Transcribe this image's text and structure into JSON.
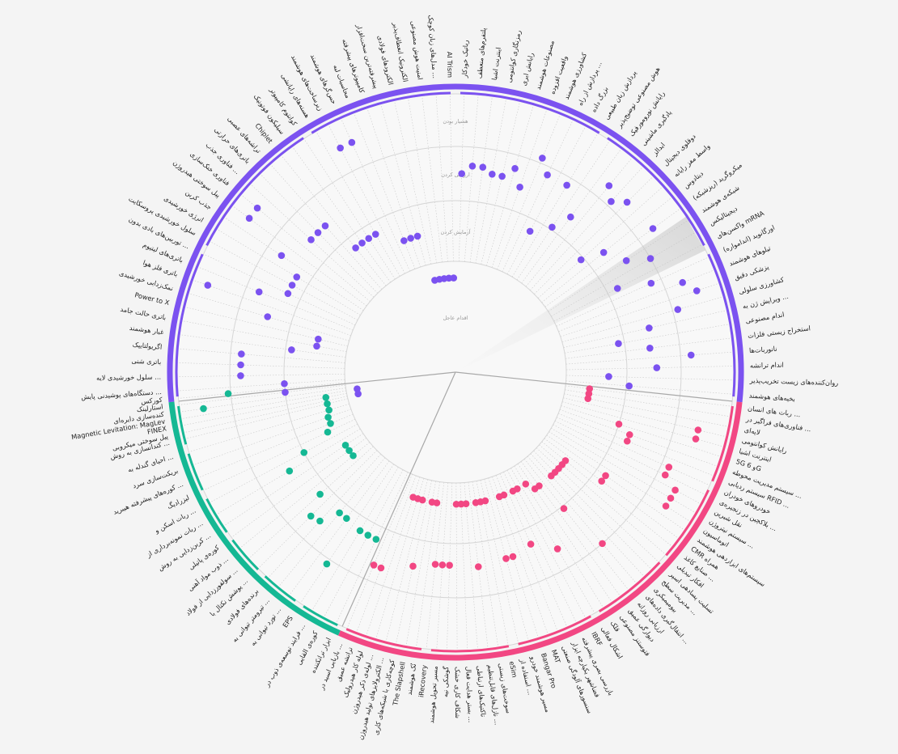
{
  "chart_data": {
    "type": "scatter",
    "rings": [
      "اقدام عاجل",
      "آزمایش کردن",
      "ارزیابی کردن",
      "هشیار بودن"
    ],
    "colors": {
      "purple": "#7b52f0",
      "teal": "#15b894",
      "pink": "#f24783"
    },
    "sectors": [
      {
        "name": "purple",
        "color": "#7b52f0",
        "items": [
          {
            "label": "بخیه‌های هوشمند",
            "ring": 2.05
          },
          {
            "label": "روان‌کننده‌های زیست تخریب‌پذیر",
            "ring": 1.7
          },
          {
            "label": "اندام ترانشه",
            "ring": 2.55
          },
          {
            "label": "نانوربات‌ها",
            "ring": 3.2
          },
          {
            "label": "استخراج زیستی فلزات",
            "ring": 2.45
          },
          {
            "label": "اندام مصنوعی",
            "ring": 1.9
          },
          {
            "label": "ویرایش ژن به ...",
            "ring": 2.5
          },
          {
            "label": "کشاورزی سلولی",
            "ring": 3.1
          },
          {
            "label": "پزشکی دقیق",
            "ring": 3.55
          },
          {
            "label": "تیلوهای هوشمند",
            "ring": 3.35
          },
          {
            "label": "اورگانوید (اندامواره)",
            "ring": 2.8
          },
          {
            "label": "واکسن‌های mRNA",
            "ring": 2.2
          },
          {
            "label": "دیجیتالیکس",
            "ring": 3.0
          },
          {
            "label": "شبکه‌ی هوشمند",
            "ring": 2.6
          },
          {
            "label": "میکروگرید (ریزشبکه)",
            "ring": 3.35
          },
          {
            "label": "دیتادوس",
            "ring": 2.35
          },
          {
            "label": "واسط مغز رایانه",
            "ring": 1.95
          },
          {
            "label": "دوقلوی دیجیتال",
            "ring": 3.3
          },
          {
            "label": "ابدالز",
            "ring": 3.1
          },
          {
            "label": "یادگیری ماشینی",
            "ring": 3.3
          },
          {
            "label": "رایانش نورومورفیک",
            "ring": 2.4
          },
          {
            "label": "هوش مصنوعی توضیح‌پذیر",
            "ring": 2.05
          },
          {
            "label": "پردازش زبان طبیعی",
            "ring": 2.85
          },
          {
            "label": "بزرگ داده",
            "ring": 1.8
          },
          {
            "label": "پردازش از راه ...",
            "ring": 2.85
          },
          {
            "label": "کشاورزی هوشمند",
            "ring": 3.1
          },
          {
            "label": "واقعیت افزوده",
            "ring": 2.45
          },
          {
            "label": "مصنوعات هوشمند",
            "ring": 2.75
          },
          {
            "label": "رایانش ابری",
            "ring": 2.55
          },
          {
            "label": "رمزنگاری کوانتومی",
            "ring": 2.55
          },
          {
            "label": "اینترنت اشیا",
            "ring": 2.65
          },
          {
            "label": "پلتفرم‌های منعطف",
            "ring": 2.65
          },
          {
            "label": "رباتیک خودکار",
            "ring": 2.5
          },
          {
            "label": "AI Trism",
            "ring": 0.85
          },
          {
            "label": "مدل‌های زبان کوچک ...",
            "ring": 0.85
          },
          {
            "label": "امنیت هوش مصنوعی",
            "ring": 0.85
          },
          {
            "label": "الکترونیک انعطاف‌پذیر",
            "ring": 0.85
          },
          {
            "label": "الکترودهای فولادی",
            "ring": 0.85
          },
          {
            "label": "پیشرفته‌ترین سخت‌افزار",
            "ring": 1.5
          },
          {
            "label": "کامپیوترهای پیشرفته",
            "ring": 1.5
          },
          {
            "label": "محاسبات لبه",
            "ring": 1.5
          },
          {
            "label": "حس‌گرهای هوشمند",
            "ring": 3.5
          },
          {
            "label": "زیرساخت‌های هوشمند",
            "ring": 3.5
          },
          {
            "label": "هسته‌های رایانشی",
            "ring": 1.8
          },
          {
            "label": "کوانتوم کامپیوتر",
            "ring": 1.8
          },
          {
            "label": "سیلیکون فوتونیک",
            "ring": 1.8
          },
          {
            "label": "Chiplet",
            "ring": 1.8
          },
          {
            "label": "تراشه‌های عصبی",
            "ring": 2.45
          },
          {
            "label": "باتری‌های حرارتی",
            "ring": 2.45
          },
          {
            "label": "فناوری جذب ...",
            "ring": 2.45
          },
          {
            "label": "فناوری خنک‌سازی",
            "ring": 3.6
          },
          {
            "label": "پیل سوختی هیدروژن",
            "ring": 3.6
          },
          {
            "label": "جذب کربن",
            "ring": 2.7
          },
          {
            "label": "انرژی خورشیدی",
            "ring": 2.25
          },
          {
            "label": "سلول خورشیدی پروسکایت",
            "ring": 2.25
          },
          {
            "label": "توربین‌های بادی بدون ...",
            "ring": 2.25
          },
          {
            "label": "باتری‌های لیتیوم",
            "ring": 2.75
          },
          {
            "label": "باتری فلز هوا",
            "ring": 3.7
          },
          {
            "label": "نمک‌زدایی خورشیدی",
            "ring": 2.45
          },
          {
            "label": "Power to X",
            "ring": 1.5
          },
          {
            "label": "باتری حالت جامد",
            "ring": 1.5
          },
          {
            "label": "غبار هوشمند",
            "ring": 1.9
          },
          {
            "label": "اگریولتاییک",
            "ring": 2.8
          },
          {
            "label": "باتری شنی",
            "ring": 2.8
          },
          {
            "label": "سلول خورشیدی لایه ...",
            "ring": 2.8
          },
          {
            "label": "دستگاه‌های پوشیدنی پایش ...",
            "ring": 2.0
          },
          {
            "label": "استارلینک",
            "ring": 2.0
          },
          {
            "label": "Magnetic Levitation: MagLev",
            "ring": 0.9
          },
          {
            "label": "پیل سوختی میکروبی",
            "ring": 0.9
          }
        ]
      },
      {
        "name": "teal",
        "color": "#15b894",
        "items": [
          {
            "label": "کورکس",
            "ring": 3.05
          },
          {
            "label": "کنده‌سازی دایره‌ای",
            "ring": 3.55
          },
          {
            "label": "FINEX",
            "ring": 1.35
          },
          {
            "label": "کندانسازی به روش ...",
            "ring": 1.35
          },
          {
            "label": "احیای گندله به ...",
            "ring": 1.35
          },
          {
            "label": "بریکت‌سازی سرد",
            "ring": 1.4
          },
          {
            "label": "کوره‌های پیشرفته هیبرید ...",
            "ring": 1.4
          },
          {
            "label": "لیزرادیگ",
            "ring": 1.5
          },
          {
            "label": "ربات اسکن و ...",
            "ring": 2.0
          },
          {
            "label": "ربات نمونه‌برداری از ...",
            "ring": 2.4
          },
          {
            "label": "کربن‌زدایی به روش ...",
            "ring": 1.35
          },
          {
            "label": "کوره‌ی پاتیلی",
            "ring": 1.35
          },
          {
            "label": "ذوب مواد آهنی ...",
            "ring": 1.35
          },
          {
            "label": "سولفورزدایی از فولاد ...",
            "ring": 2.2
          },
          {
            "label": "پوشش نکتال با ...",
            "ring": 2.6
          },
          {
            "label": "برنده‌های فولادی",
            "ring": 2.55
          },
          {
            "label": "تیرومتر تیوانی به ...",
            "ring": 2.2
          },
          {
            "label": "تورد تیوانی به ...",
            "ring": 2.2
          },
          {
            "label": "EPS",
            "ring": 3.1
          },
          {
            "label": "فرایند توسعه‌ی ذوب در ...",
            "ring": 2.25
          },
          {
            "label": "کوره‌ی القایی",
            "ring": 2.25
          },
          {
            "label": "ابزار ترانکننده",
            "ring": 2.25
          }
        ]
      },
      {
        "name": "pink",
        "color": "#f24783",
        "items": [
          {
            "label": "بازیابی اسید در ...",
            "ring": 2.7
          },
          {
            "label": "ترانشه عمیق",
            "ring": 2.7
          },
          {
            "label": "لوله کار هیدرولیک",
            "ring": 1.35
          },
          {
            "label": "لوله‌ی ذکر هیدروژن ...",
            "ring": 1.35
          },
          {
            "label": "الکترولایزهای تولید هیدروژن ...",
            "ring": 1.35
          },
          {
            "label": "کوچه‌کاری با شبکه‌های کاری",
            "ring": 2.5
          },
          {
            "label": "The Slapshell",
            "ring": 1.35
          },
          {
            "label": "نُک هوشمند",
            "ring": 1.35
          },
          {
            "label": "iRecovery",
            "ring": 2.4
          },
          {
            "label": "مسیر تحویل هوشمند",
            "ring": 2.4
          },
          {
            "label": "گوشکی نیه",
            "ring": 2.4
          },
          {
            "label": "شکاف کاری خشک",
            "ring": 1.35
          },
          {
            "label": "بستر هدایت فعال ...",
            "ring": 1.35
          },
          {
            "label": "تاکتیک‌های ارتباطی",
            "ring": 1.35
          },
          {
            "label": "نازل‌های قابل‌تنظیم ...",
            "ring": 2.45
          },
          {
            "label": "سوخت‌های زیستی",
            "ring": 1.35
          },
          {
            "label": "eSim",
            "ring": 1.35
          },
          {
            "label": "استفاده از ...",
            "ring": 1.35
          },
          {
            "label": "مسیر هوشمند خودرو",
            "ring": 2.4
          },
          {
            "label": "Bangar Pro",
            "ring": 2.4
          },
          {
            "label": "MAT",
            "ring": 1.35
          },
          {
            "label": "سنسورهای آلودگی صنعتی",
            "ring": 1.35
          },
          {
            "label": "فضاشهر یکپارچه ایزار",
            "ring": 2.3
          },
          {
            "label": "بازرسی بصری پیشرفته",
            "ring": 1.35
          },
          {
            "label": "IBRF",
            "ring": 1.35
          },
          {
            "label": "اشکال فعالی",
            "ring": 2.6
          },
          {
            "label": "قلک",
            "ring": 1.35
          },
          {
            "label": "فتوستنز مصنوعی",
            "ring": 1.5
          },
          {
            "label": "دیوارگی عمیق",
            "ring": 1.5
          },
          {
            "label": "ارزیابی روزانه",
            "ring": 2.05
          },
          {
            "label": "انتقال‌گیری داده‌های ...",
            "ring": 3.0
          },
          {
            "label": "بیومیمیکری",
            "ring": 1.5
          },
          {
            "label": "مدیریت سطح ...",
            "ring": 1.5
          },
          {
            "label": "تسلیت پسادهی اسپر",
            "ring": 1.5
          },
          {
            "label": "افکار تبدیلی",
            "ring": 1.5
          },
          {
            "label": "صنایع کاغذ ...",
            "ring": 1.5
          },
          {
            "label": "CMR همراه",
            "ring": 2.2
          },
          {
            "label": "سیستم‌های ابزاردهی هوشمند",
            "ring": 2.2
          },
          {
            "label": "اتوماسیون",
            "ring": 3.45
          },
          {
            "label": "سیستم نیتروژن ...",
            "ring": 3.45
          },
          {
            "label": "نقل شیرین",
            "ring": 3.45
          },
          {
            "label": "بلاکچین در زنجیره‌ی ...",
            "ring": 3.15
          },
          {
            "label": "خودروهای خودران",
            "ring": 3.15
          },
          {
            "label": "سیستم ردیابی RFID ...",
            "ring": 2.25
          },
          {
            "label": "سیستم مدیریت محوطه ...",
            "ring": 2.25
          },
          {
            "label": "5G و 6G",
            "ring": 2.0
          },
          {
            "label": "اینترنت اشیا",
            "ring": 3.45
          },
          {
            "label": "رایانش کوانتومی",
            "ring": 3.45
          },
          {
            "label": "لایه‌ای",
            "ring": 1.4
          },
          {
            "label": "فناوری‌های فراگیر در ...",
            "ring": 1.4
          },
          {
            "label": "ربات های انسان ...",
            "ring": 1.4
          }
        ]
      }
    ]
  }
}
